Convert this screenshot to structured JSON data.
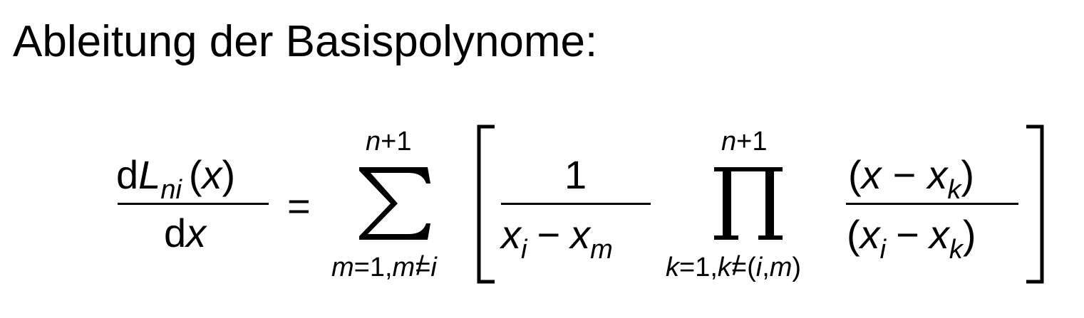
{
  "page": {
    "heading": "Ableitung der Basispolynome:"
  },
  "formula": {
    "lhs": {
      "num_d": "d",
      "num_L": "L",
      "num_sub": "ni",
      "num_arg_open": "(",
      "num_arg_var": "x",
      "num_arg_close": ")",
      "den_d": "d",
      "den_var": "x"
    },
    "equals": "=",
    "sum": {
      "upper_n": "n",
      "upper_rest": "+1",
      "lower_m": "m",
      "lower_rest": "=1,",
      "lower_m2": "m",
      "lower_neq": "=",
      "lower_i": "i"
    },
    "frac1": {
      "num": "1",
      "den_x": "x",
      "den_i": "i",
      "den_minus": "−",
      "den_x2": "x",
      "den_m": "m"
    },
    "prod": {
      "upper_n": "n",
      "upper_rest": "+1",
      "lower_k": "k",
      "lower_rest": "=1,",
      "lower_k2": "k",
      "lower_neq": "=",
      "lower_open": "(",
      "lower_i": "i",
      "lower_comma": ",",
      "lower_m": "m",
      "lower_close": ")"
    },
    "frac2": {
      "num_open": "(",
      "num_x": "x",
      "num_minus": "−",
      "num_x2": "x",
      "num_k": "k",
      "num_close": ")",
      "den_open": "(",
      "den_x": "x",
      "den_i": "i",
      "den_minus": "−",
      "den_x2": "x",
      "den_k": "k",
      "den_close": ")"
    }
  }
}
